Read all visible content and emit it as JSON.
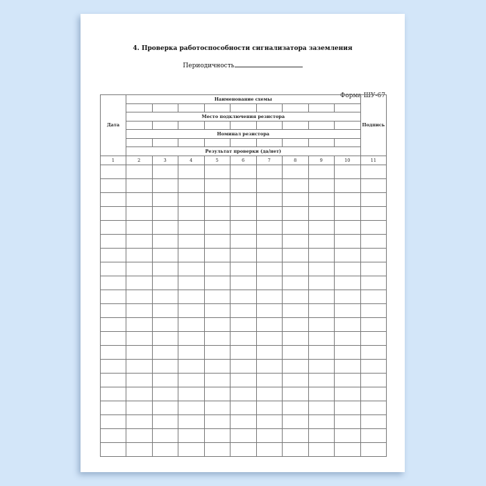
{
  "document": {
    "title": "4. Проверка работоспособности сигнализатора заземления",
    "periodicity_label": "Периодичность",
    "form_label": "Форма ШУ-67"
  },
  "table": {
    "date_header": "Дата",
    "signature_header": "Подпись",
    "scheme_name": "Наименование схемы",
    "resistor_place": "Место подключения резистора",
    "resistor_nominal": "Номинал резистора",
    "check_result": "Результат проверки (да/нет)",
    "column_numbers": [
      "1",
      "2",
      "3",
      "4",
      "5",
      "6",
      "7",
      "8",
      "9",
      "10",
      "11"
    ]
  },
  "colors": {
    "background": "#d3e6f9",
    "page": "#ffffff",
    "grid": "#777777"
  }
}
